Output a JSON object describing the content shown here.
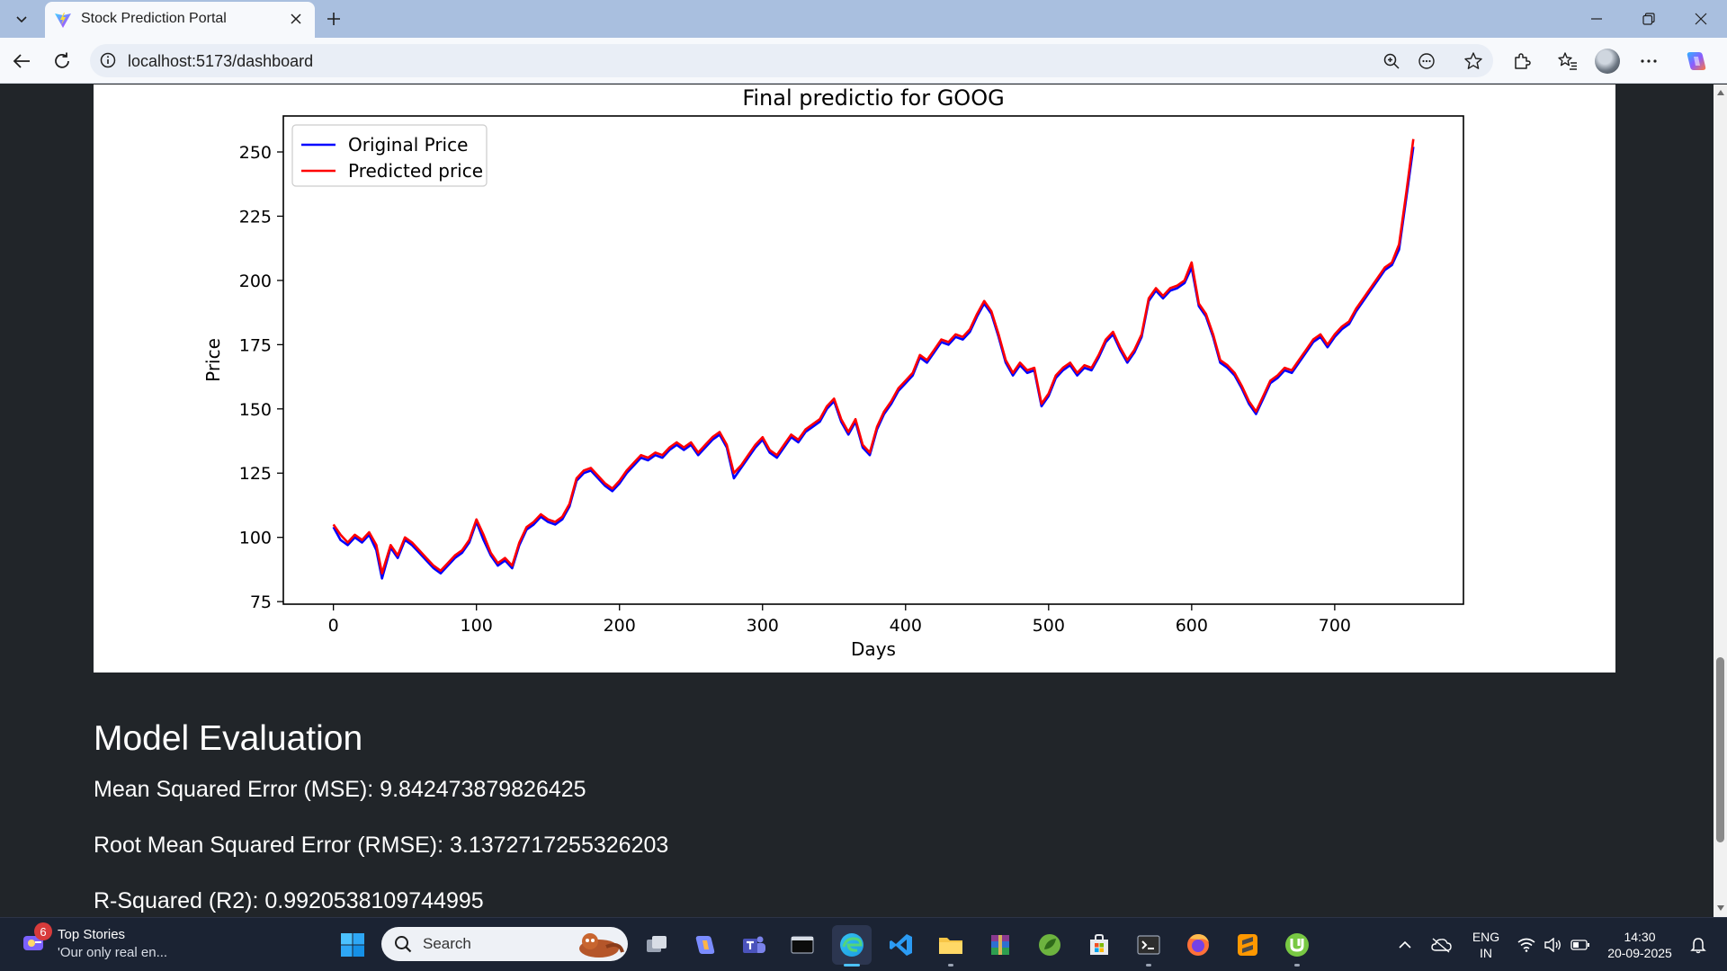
{
  "browser": {
    "tab": {
      "title": "Stock Prediction Portal"
    },
    "address": {
      "url": "localhost:5173/dashboard"
    }
  },
  "chart_data": {
    "type": "line",
    "title": "Final predictio for GOOG",
    "xlabel": "Days",
    "ylabel": "Price",
    "xlim": [
      -35,
      790
    ],
    "ylim": [
      74,
      264
    ],
    "xticks": [
      0,
      100,
      200,
      300,
      400,
      500,
      600,
      700
    ],
    "yticks": [
      75,
      100,
      125,
      150,
      175,
      200,
      225,
      250
    ],
    "grid": false,
    "legend_position": "upper-left",
    "series": [
      {
        "name": "Original Price",
        "color": "#0000ff",
        "x": [
          0,
          5,
          10,
          15,
          20,
          25,
          30,
          34,
          40,
          45,
          50,
          55,
          60,
          65,
          70,
          75,
          80,
          85,
          90,
          95,
          100,
          105,
          110,
          115,
          120,
          125,
          130,
          135,
          140,
          145,
          150,
          155,
          160,
          165,
          170,
          175,
          180,
          185,
          190,
          195,
          200,
          205,
          210,
          215,
          220,
          225,
          230,
          235,
          240,
          245,
          250,
          255,
          260,
          265,
          270,
          275,
          280,
          285,
          290,
          295,
          300,
          305,
          310,
          315,
          320,
          325,
          330,
          335,
          340,
          345,
          350,
          355,
          360,
          365,
          370,
          375,
          380,
          385,
          390,
          395,
          400,
          405,
          410,
          415,
          420,
          425,
          430,
          435,
          440,
          445,
          450,
          455,
          460,
          465,
          470,
          475,
          480,
          485,
          490,
          495,
          500,
          505,
          510,
          515,
          520,
          525,
          530,
          535,
          540,
          545,
          550,
          555,
          560,
          565,
          570,
          575,
          580,
          585,
          590,
          595,
          600,
          605,
          610,
          615,
          620,
          625,
          630,
          635,
          640,
          645,
          650,
          655,
          660,
          665,
          670,
          675,
          680,
          685,
          690,
          695,
          700,
          705,
          710,
          715,
          720,
          725,
          730,
          735,
          740,
          745,
          750,
          755
        ],
        "y": [
          104,
          99,
          97,
          100,
          98,
          101,
          95,
          84,
          96,
          92,
          99,
          97,
          94,
          91,
          88,
          86,
          89,
          92,
          94,
          98,
          106,
          99,
          93,
          89,
          91,
          88,
          97,
          103,
          105,
          108,
          106,
          105,
          107,
          112,
          122,
          125,
          126,
          123,
          120,
          118,
          121,
          125,
          128,
          131,
          130,
          132,
          131,
          134,
          136,
          134,
          136,
          132,
          135,
          138,
          140,
          135,
          123,
          127,
          131,
          135,
          138,
          133,
          131,
          135,
          139,
          137,
          141,
          143,
          145,
          150,
          153,
          145,
          140,
          145,
          135,
          132,
          142,
          148,
          152,
          157,
          160,
          163,
          170,
          168,
          172,
          176,
          175,
          178,
          177,
          180,
          186,
          191,
          187,
          178,
          168,
          163,
          167,
          164,
          165,
          151,
          155,
          162,
          165,
          167,
          163,
          166,
          165,
          170,
          176,
          179,
          173,
          168,
          172,
          178,
          192,
          196,
          193,
          196,
          197,
          199,
          205,
          190,
          186,
          178,
          168,
          166,
          163,
          158,
          152,
          148,
          154,
          160,
          162,
          165,
          164,
          168,
          172,
          176,
          178,
          174,
          178,
          181,
          183,
          188,
          192,
          196,
          200,
          204,
          206,
          212,
          232,
          252
        ]
      },
      {
        "name": "Predicted price",
        "color": "#ff0000",
        "x": [
          0,
          5,
          10,
          15,
          20,
          25,
          30,
          34,
          40,
          45,
          50,
          55,
          60,
          65,
          70,
          75,
          80,
          85,
          90,
          95,
          100,
          105,
          110,
          115,
          120,
          125,
          130,
          135,
          140,
          145,
          150,
          155,
          160,
          165,
          170,
          175,
          180,
          185,
          190,
          195,
          200,
          205,
          210,
          215,
          220,
          225,
          230,
          235,
          240,
          245,
          250,
          255,
          260,
          265,
          270,
          275,
          280,
          285,
          290,
          295,
          300,
          305,
          310,
          315,
          320,
          325,
          330,
          335,
          340,
          345,
          350,
          355,
          360,
          365,
          370,
          375,
          380,
          385,
          390,
          395,
          400,
          405,
          410,
          415,
          420,
          425,
          430,
          435,
          440,
          445,
          450,
          455,
          460,
          465,
          470,
          475,
          480,
          485,
          490,
          495,
          500,
          505,
          510,
          515,
          520,
          525,
          530,
          535,
          540,
          545,
          550,
          555,
          560,
          565,
          570,
          575,
          580,
          585,
          590,
          595,
          600,
          605,
          610,
          615,
          620,
          625,
          630,
          635,
          640,
          645,
          650,
          655,
          660,
          665,
          670,
          675,
          680,
          685,
          690,
          695,
          700,
          705,
          710,
          715,
          720,
          725,
          730,
          735,
          740,
          745,
          750,
          755
        ],
        "y": [
          105,
          101,
          98,
          101,
          99,
          102,
          97,
          86,
          97,
          93,
          100,
          98,
          95,
          92,
          89,
          87,
          90,
          93,
          95,
          99,
          107,
          101,
          94,
          90,
          92,
          89,
          98,
          104,
          106,
          109,
          107,
          106,
          108,
          113,
          123,
          126,
          127,
          124,
          121,
          119,
          122,
          126,
          129,
          132,
          131,
          133,
          132,
          135,
          137,
          135,
          137,
          133,
          136,
          139,
          141,
          136,
          125,
          128,
          132,
          136,
          139,
          134,
          132,
          136,
          140,
          138,
          142,
          144,
          146,
          151,
          154,
          146,
          141,
          146,
          136,
          133,
          143,
          149,
          153,
          158,
          161,
          164,
          171,
          169,
          173,
          177,
          176,
          179,
          178,
          181,
          187,
          192,
          188,
          179,
          169,
          164,
          168,
          165,
          166,
          152,
          156,
          163,
          166,
          168,
          164,
          167,
          166,
          171,
          177,
          180,
          174,
          169,
          173,
          179,
          193,
          197,
          194,
          197,
          198,
          200,
          207,
          191,
          187,
          179,
          169,
          167,
          164,
          159,
          153,
          149,
          155,
          161,
          163,
          166,
          165,
          169,
          173,
          177,
          179,
          175,
          179,
          182,
          184,
          189,
          193,
          197,
          201,
          205,
          207,
          214,
          234,
          255
        ]
      }
    ]
  },
  "evaluation": {
    "heading": "Model Evaluation",
    "mse": "Mean Squared Error (MSE): 9.842473879826425",
    "rmse": "Root Mean Squared Error (RMSE): 3.1372717255326203",
    "r2": "R-Squared (R2): 0.9920538109744995"
  },
  "taskbar": {
    "news": {
      "badge": "6",
      "title": "Top Stories",
      "subtitle": "'Our only real en..."
    },
    "search_label": "Search",
    "language": "ENG",
    "region": "IN",
    "time": "14:30",
    "date": "20-09-2025"
  }
}
